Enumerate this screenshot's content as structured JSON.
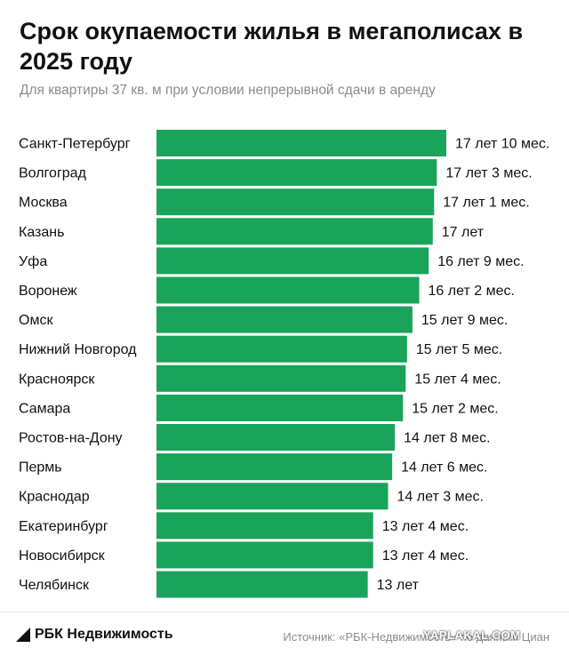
{
  "title": "Срок окупаемости жилья в мегаполисах в 2025 году",
  "subtitle": "Для квартиры 37 кв. м при условии непрерывной сдачи в аренду",
  "colors": {
    "bar": "#1aa45a",
    "text": "#111111",
    "muted": "#8c8c8c"
  },
  "chart_data": {
    "type": "bar",
    "orientation": "horizontal",
    "categories": [
      "Санкт-Петербург",
      "Волгоград",
      "Москва",
      "Казань",
      "Уфа",
      "Воронеж",
      "Омск",
      "Нижний Новгород",
      "Красноярск",
      "Самара",
      "Ростов-на-Дону",
      "Пермь",
      "Краснодар",
      "Екатеринбург",
      "Новосибирск",
      "Челябинск"
    ],
    "values": [
      17.833,
      17.25,
      17.083,
      17.0,
      16.75,
      16.167,
      15.75,
      15.417,
      15.333,
      15.167,
      14.667,
      14.5,
      14.25,
      13.333,
      13.333,
      13.0
    ],
    "data_labels": [
      "17 лет 10 мес.",
      "17 лет 3 мес.",
      "17 лет 1 мес.",
      "17 лет",
      "16 лет 9 мес.",
      "16 лет 2 мес.",
      "15 лет 9 мес.",
      "15 лет 5 мес.",
      "15 лет 4 мес.",
      "15 лет 2 мес.",
      "14 лет 8 мес.",
      "14 лет 6 мес.",
      "14 лет 3 мес.",
      "13 лет 4 мес.",
      "13 лет 4 мес.",
      "13 лет"
    ],
    "unit": "years",
    "xlim": [
      0,
      17.833
    ],
    "grid": false,
    "legend": "none"
  },
  "footer": {
    "brand": "РБК Недвижимость",
    "brand_icon": "rbc-logo-icon",
    "source": "Источник: «РБК-Недвижимость» по данным Циан",
    "watermark": "YAPLAKAL.COM"
  }
}
